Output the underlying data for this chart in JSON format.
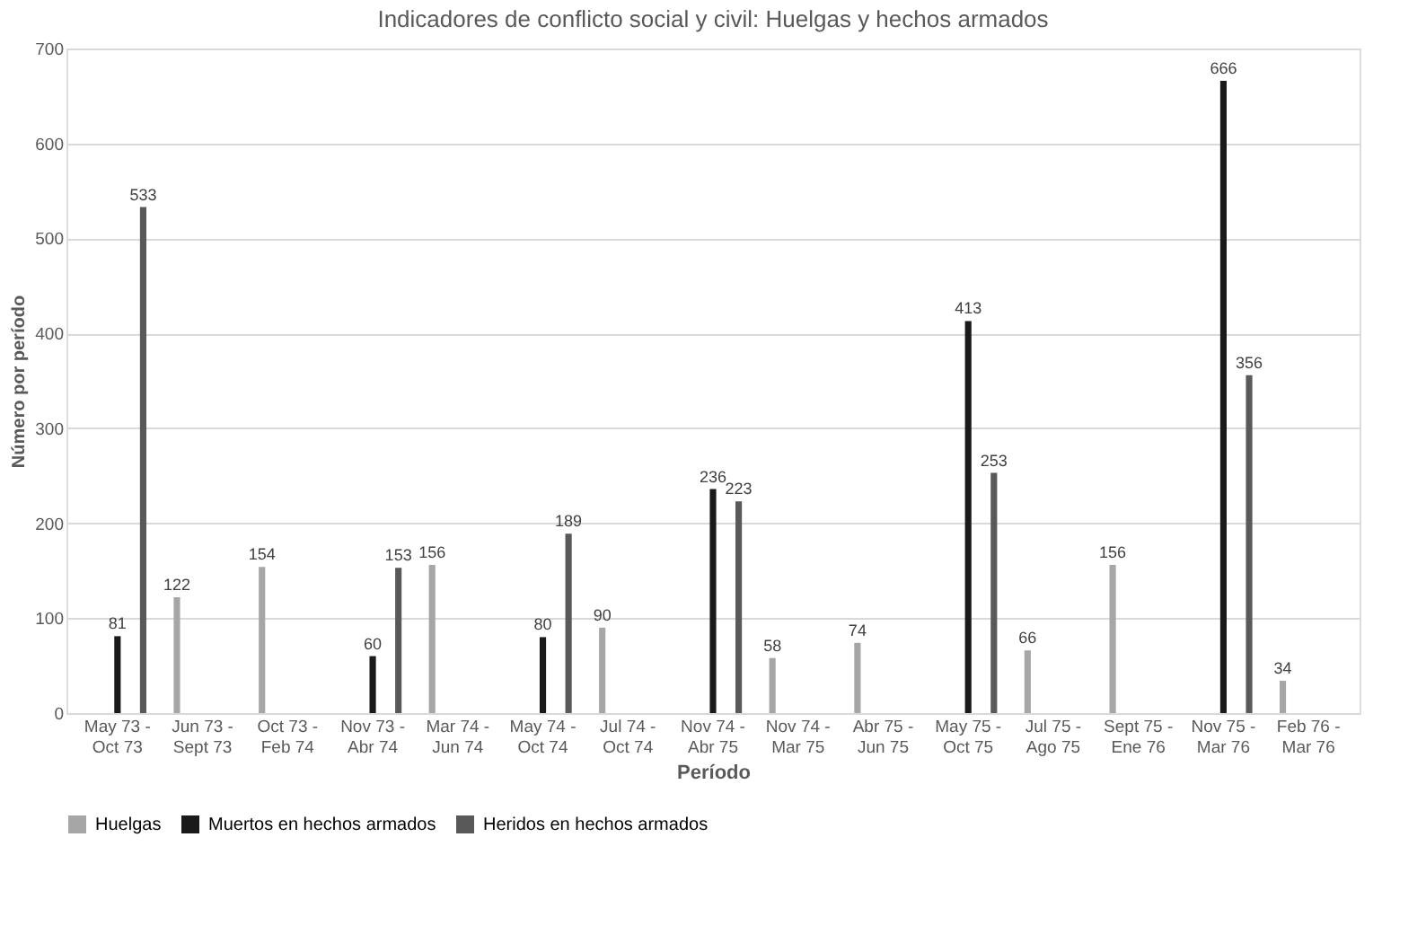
{
  "chart_data": {
    "type": "bar",
    "title": "Indicadores de conflicto social y civil: Huelgas y hechos armados",
    "xlabel": "Período",
    "ylabel": "Número por período",
    "categories": [
      "May 73 - Oct 73",
      "Jun 73 - Sept 73",
      "Oct 73 - Feb 74",
      "Nov 73 - Abr 74",
      "Mar 74 - Jun 74",
      "May 74 - Oct 74",
      "Jul 74 - Oct 74",
      "Nov 74 - Abr 75",
      "Nov 74 - Mar 75",
      "Abr 75 - Jun 75",
      "May 75 - Oct 75",
      "Jul 75 - Ago 75",
      "Sept 75 - Ene 76",
      "Nov 75 - Mar 76",
      "Feb 76 - Mar 76"
    ],
    "series": [
      {
        "name": "Huelgas",
        "color": "#a6a6a6",
        "values": [
          null,
          122,
          154,
          null,
          156,
          null,
          90,
          null,
          58,
          74,
          null,
          66,
          156,
          null,
          34
        ]
      },
      {
        "name": "Muertos en hechos armados",
        "color": "#1a1a1a",
        "values": [
          81,
          null,
          null,
          60,
          null,
          80,
          null,
          236,
          null,
          null,
          413,
          null,
          null,
          666,
          null
        ]
      },
      {
        "name": "Heridos en hechos armados",
        "color": "#595959",
        "values": [
          533,
          null,
          null,
          153,
          null,
          189,
          null,
          223,
          null,
          null,
          253,
          null,
          null,
          356,
          null
        ]
      }
    ],
    "ylim": [
      0,
      700
    ],
    "yticks": [
      0,
      100,
      200,
      300,
      400,
      500,
      600,
      700
    ],
    "grid": "y",
    "legend": "bottom",
    "data_labels": true
  }
}
